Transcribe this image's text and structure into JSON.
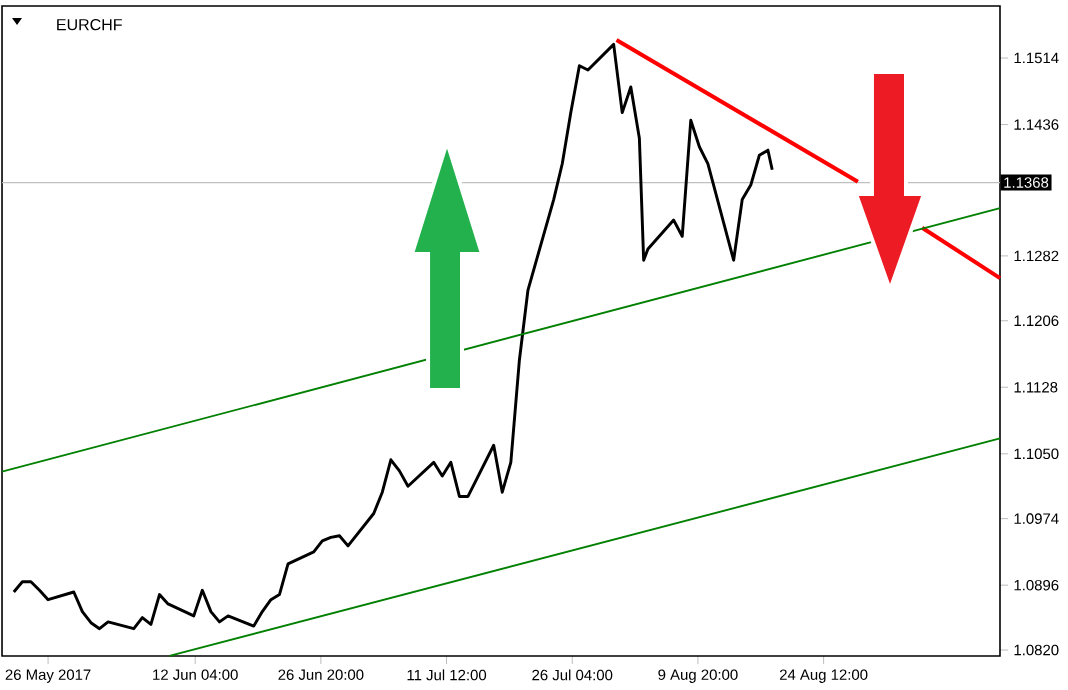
{
  "chart_data": {
    "type": "line",
    "title": "EURCHF",
    "xlim": [
      "2017-05-20T15:00",
      "2017-09-14T02:00"
    ],
    "ylim": [
      1.0813,
      1.1575
    ],
    "xticks": [
      {
        "value": "2017-05-26",
        "label": "26 May 2017"
      },
      {
        "value": "2017-06-12T04:00",
        "label": "12 Jun 04:00"
      },
      {
        "value": "2017-06-26T20:00",
        "label": "26 Jun 20:00"
      },
      {
        "value": "2017-07-11T12:00",
        "label": "11 Jul 12:00"
      },
      {
        "value": "2017-07-26T04:00",
        "label": "26 Jul 04:00"
      },
      {
        "value": "2017-08-09T20:00",
        "label": "9 Aug 20:00"
      },
      {
        "value": "2017-08-24T12:00",
        "label": "24 Aug 12:00"
      }
    ],
    "yticks": [
      {
        "value": 1.082,
        "label": "1.0820"
      },
      1.0896,
      1.0974,
      {
        "value": 1.105,
        "label": "1.1050"
      },
      1.1128,
      1.1206,
      1.1282,
      1.1436,
      1.1514
    ],
    "series": [
      {
        "color": "#000000",
        "x": [
          "2017-05-22",
          "2017-05-23",
          "2017-05-24",
          "2017-05-25",
          "2017-05-26",
          "2017-05-29",
          "2017-05-30",
          "2017-05-31",
          "2017-06-01",
          "2017-06-02",
          "2017-06-05",
          "2017-06-06",
          "2017-06-07",
          "2017-06-08",
          "2017-06-09",
          "2017-06-12",
          "2017-06-13",
          "2017-06-14",
          "2017-06-15",
          "2017-06-16",
          "2017-06-19",
          "2017-06-20",
          "2017-06-21",
          "2017-06-22",
          "2017-06-23",
          "2017-06-26",
          "2017-06-27",
          "2017-06-28",
          "2017-06-29",
          "2017-06-30",
          "2017-07-03",
          "2017-07-04",
          "2017-07-05",
          "2017-07-06",
          "2017-07-07",
          "2017-07-10",
          "2017-07-11",
          "2017-07-12",
          "2017-07-13",
          "2017-07-14",
          "2017-07-17",
          "2017-07-18",
          "2017-07-19",
          "2017-07-20",
          "2017-07-21",
          "2017-07-24",
          "2017-07-25",
          "2017-07-26",
          "2017-07-27",
          "2017-07-28",
          "2017-07-31",
          "2017-08-01",
          "2017-08-02",
          "2017-08-03",
          "2017-08-03T12:00",
          "2017-08-04",
          "2017-08-07",
          "2017-08-08",
          "2017-08-09",
          "2017-08-10",
          "2017-08-11",
          "2017-08-14",
          "2017-08-15",
          "2017-08-16",
          "2017-08-17",
          "2017-08-18",
          "2017-08-18T12:00"
        ],
        "values": [
          1.0888,
          1.09,
          1.09,
          1.089,
          1.0879,
          1.0888,
          1.0865,
          1.0852,
          1.0845,
          1.0853,
          1.0845,
          1.0858,
          1.085,
          1.0885,
          1.0874,
          1.086,
          1.089,
          1.0865,
          1.0853,
          1.086,
          1.0848,
          1.0865,
          1.0879,
          1.0885,
          1.0921,
          1.0935,
          1.0948,
          1.0952,
          1.0954,
          1.0942,
          1.098,
          1.1005,
          1.1043,
          1.103,
          1.1012,
          1.104,
          1.1024,
          1.104,
          1.1,
          1.1,
          1.106,
          1.1005,
          1.104,
          1.116,
          1.1242,
          1.1348,
          1.139,
          1.145,
          1.1505,
          1.15,
          1.153,
          1.145,
          1.148,
          1.142,
          1.1277,
          1.129,
          1.1324,
          1.1305,
          1.1441,
          1.141,
          1.139,
          1.1277,
          1.1348,
          1.1365,
          1.14,
          1.1406,
          1.1383
        ]
      },
      {
        "color": "#ff0000",
        "x": [
          "2017-07-31T08:00",
          "2017-08-28T12:00",
          "2017-08-31",
          "2017-09-05",
          "2017-09-14T02:00"
        ],
        "values": [
          1.1535,
          1.1369,
          null,
          1.1315,
          1.1256
        ]
      },
      {
        "color": "#008000",
        "x": [
          "2017-05-20T15:00",
          "2017-09-14T02:00"
        ],
        "values": [
          1.1029,
          1.1338
        ]
      },
      {
        "color": "#008000",
        "x": [
          "2017-06-09T04:00",
          "2017-09-14T02:00"
        ],
        "values": [
          1.0813,
          1.1068
        ]
      }
    ],
    "ref_lines": [
      {
        "axis": "y",
        "value": 1.1368,
        "label": "1.1368",
        "color": "#c0c0c0"
      }
    ]
  }
}
